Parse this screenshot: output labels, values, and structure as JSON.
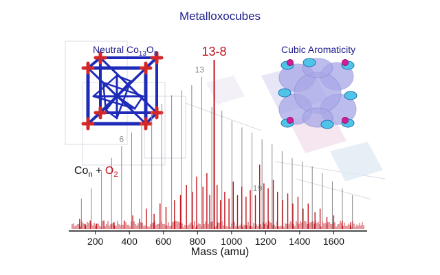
{
  "title": "Metalloxocubes",
  "label_left": {
    "prefix": "Neutral Co",
    "sub1": "13",
    "mid": "O",
    "sub2": "8"
  },
  "label_right": "Cubic Aromaticity",
  "formula": {
    "co": "Co",
    "n": "n",
    "plus": " + ",
    "o": "O",
    "two": "2"
  },
  "colors": {
    "title": "#1c1c8c",
    "major": "#c0141c",
    "gray": "#8a8a8a",
    "cube_edge": "#1d2bb8",
    "cube_corner": "#d42828",
    "orbital": "#a8a8e8"
  },
  "chart_data": {
    "type": "bar",
    "xlabel": "Mass (amu)",
    "xlim": [
      60,
      1780
    ],
    "ticks": [
      200,
      400,
      600,
      800,
      1000,
      1200,
      1400,
      1600
    ],
    "annotations": [
      {
        "text": "6",
        "x": 354,
        "color": "#8a8a8a"
      },
      {
        "text": "13",
        "x": 812,
        "color": "#8a8a8a"
      },
      {
        "text": "13-8",
        "x": 898,
        "color": "#c0141c",
        "major": true
      },
      {
        "text": "19",
        "x": 1152,
        "color": "#8a8a8a"
      }
    ],
    "cluster_peaks": [
      {
        "x": 118,
        "h": 0.18
      },
      {
        "x": 177,
        "h": 0.24
      },
      {
        "x": 236,
        "h": 0.34
      },
      {
        "x": 295,
        "h": 0.42
      },
      {
        "x": 354,
        "h": 0.49
      },
      {
        "x": 413,
        "h": 0.57
      },
      {
        "x": 472,
        "h": 0.63
      },
      {
        "x": 531,
        "h": 0.69
      },
      {
        "x": 590,
        "h": 0.74
      },
      {
        "x": 648,
        "h": 0.79
      },
      {
        "x": 707,
        "h": 0.82
      },
      {
        "x": 766,
        "h": 0.85
      },
      {
        "x": 825,
        "h": 0.9
      },
      {
        "x": 884,
        "h": 0.72
      },
      {
        "x": 943,
        "h": 0.7
      },
      {
        "x": 1002,
        "h": 0.64
      },
      {
        "x": 1061,
        "h": 0.6
      },
      {
        "x": 1120,
        "h": 0.57
      },
      {
        "x": 1179,
        "h": 0.53
      },
      {
        "x": 1238,
        "h": 0.5
      },
      {
        "x": 1297,
        "h": 0.46
      },
      {
        "x": 1356,
        "h": 0.42
      },
      {
        "x": 1415,
        "h": 0.4
      },
      {
        "x": 1474,
        "h": 0.37
      },
      {
        "x": 1533,
        "h": 0.33
      },
      {
        "x": 1592,
        "h": 0.28
      },
      {
        "x": 1651,
        "h": 0.24
      },
      {
        "x": 1710,
        "h": 0.2
      }
    ],
    "oxide_peaks": [
      {
        "x": 898,
        "h": 1.0
      },
      {
        "x": 108,
        "h": 0.06
      },
      {
        "x": 140,
        "h": 0.03
      },
      {
        "x": 170,
        "h": 0.05
      },
      {
        "x": 205,
        "h": 0.03
      },
      {
        "x": 250,
        "h": 0.05
      },
      {
        "x": 310,
        "h": 0.04
      },
      {
        "x": 370,
        "h": 0.05
      },
      {
        "x": 420,
        "h": 0.08
      },
      {
        "x": 460,
        "h": 0.06
      },
      {
        "x": 500,
        "h": 0.12
      },
      {
        "x": 545,
        "h": 0.09
      },
      {
        "x": 580,
        "h": 0.15
      },
      {
        "x": 615,
        "h": 0.13
      },
      {
        "x": 665,
        "h": 0.17
      },
      {
        "x": 700,
        "h": 0.2
      },
      {
        "x": 735,
        "h": 0.26
      },
      {
        "x": 770,
        "h": 0.22
      },
      {
        "x": 795,
        "h": 0.31
      },
      {
        "x": 832,
        "h": 0.25
      },
      {
        "x": 855,
        "h": 0.33
      },
      {
        "x": 872,
        "h": 0.2
      },
      {
        "x": 915,
        "h": 0.26
      },
      {
        "x": 935,
        "h": 0.17
      },
      {
        "x": 960,
        "h": 0.22
      },
      {
        "x": 985,
        "h": 0.18
      },
      {
        "x": 1010,
        "h": 0.28
      },
      {
        "x": 1035,
        "h": 0.2
      },
      {
        "x": 1060,
        "h": 0.25
      },
      {
        "x": 1085,
        "h": 0.19
      },
      {
        "x": 1110,
        "h": 0.23
      },
      {
        "x": 1140,
        "h": 0.2
      },
      {
        "x": 1165,
        "h": 0.38
      },
      {
        "x": 1190,
        "h": 0.27
      },
      {
        "x": 1215,
        "h": 0.24
      },
      {
        "x": 1245,
        "h": 0.29
      },
      {
        "x": 1270,
        "h": 0.22
      },
      {
        "x": 1300,
        "h": 0.17
      },
      {
        "x": 1330,
        "h": 0.21
      },
      {
        "x": 1360,
        "h": 0.15
      },
      {
        "x": 1390,
        "h": 0.19
      },
      {
        "x": 1420,
        "h": 0.12
      },
      {
        "x": 1450,
        "h": 0.15
      },
      {
        "x": 1490,
        "h": 0.1
      },
      {
        "x": 1520,
        "h": 0.12
      },
      {
        "x": 1560,
        "h": 0.07
      },
      {
        "x": 1600,
        "h": 0.08
      },
      {
        "x": 1650,
        "h": 0.05
      },
      {
        "x": 1700,
        "h": 0.04
      }
    ]
  }
}
